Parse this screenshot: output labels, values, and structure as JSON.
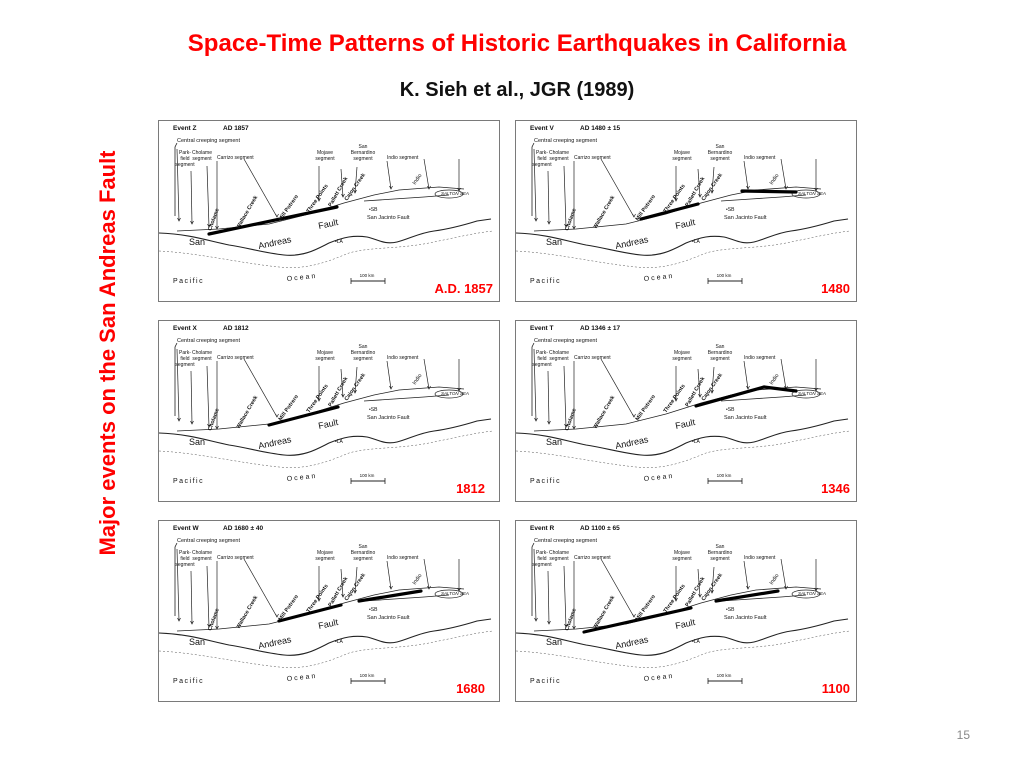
{
  "slide": {
    "title": "Space-Time Patterns of Historic  Earthquakes in California",
    "subtitle": "K. Sieh et al., JGR (1989)",
    "side_label": "Major events on the San Andreas Fault",
    "page_number": "15"
  },
  "map_labels": {
    "central": "Central creeping segment",
    "parkfield": [
      "Park-",
      "field",
      "segment"
    ],
    "cholame_seg": [
      "Cholame",
      "segment"
    ],
    "carrizo": "Carrizo segment",
    "mojave": [
      "Mojave",
      "segment"
    ],
    "sanbern": [
      "San",
      "Bernardino",
      "segment"
    ],
    "indio_seg": "Indio segment",
    "cholame": "Cholame",
    "wallace": "Wallace Creek",
    "millpotrero": "Mill Potrero",
    "threepoints": "Three Points",
    "pallett": "Pallett Creek",
    "cajon": "Cajon Creek",
    "indio": "Indio",
    "saltonsea": "SALTON SEA",
    "sb": "SB",
    "sanjacinto": "San Jacinto Fault",
    "la": "LA",
    "san": "San",
    "andreas": "Andreas",
    "fault": "Fault",
    "pacific": "Pacific",
    "ocean": "Ocean",
    "scale": "100 km"
  },
  "events": [
    {
      "event": "Event Z",
      "date": "AD 1857",
      "year_label": "A.D. 1857"
    },
    {
      "event": "Event V",
      "date": "AD 1480 ± 15",
      "year_label": "1480"
    },
    {
      "event": "Event X",
      "date": "AD 1812",
      "year_label": "1812"
    },
    {
      "event": "Event T",
      "date": "AD 1346 ± 17",
      "year_label": "1346"
    },
    {
      "event": "Event W",
      "date": "AD 1680 ± 40",
      "year_label": "1680"
    },
    {
      "event": "Event R",
      "date": "AD 1100 ± 65",
      "year_label": "1100"
    }
  ]
}
